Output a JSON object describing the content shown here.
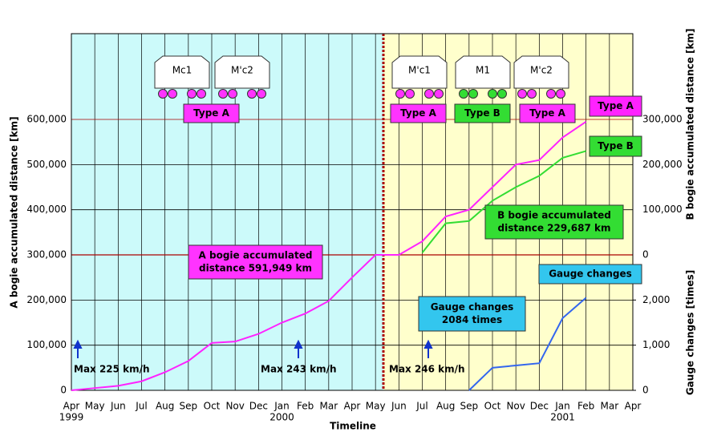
{
  "chart_data": {
    "type": "line",
    "title_x": "Timeline",
    "ylabel": "A bogie accumulated distance [km]",
    "y2label": "B bogie accumulated distance [km]",
    "y3label": "Gauge changes [times]",
    "categories": [
      "Apr",
      "May",
      "Jun",
      "Jul",
      "Aug",
      "Sep",
      "Oct",
      "Nov",
      "Dec",
      "Jan",
      "Feb",
      "Mar",
      "Apr",
      "May",
      "Jun",
      "Jul",
      "Aug",
      "Sep",
      "Oct",
      "Nov",
      "Dec",
      "Jan",
      "Feb",
      "Mar",
      "Apr"
    ],
    "year_labels": [
      {
        "category": 0,
        "label": "1999"
      },
      {
        "category": 9,
        "label": "2000"
      },
      {
        "category": 21,
        "label": "2001"
      }
    ],
    "ylim": [
      0,
      790000
    ],
    "yticks": [
      0,
      {
        "value": 100000,
        "label": "100,000"
      },
      {
        "value": 200000,
        "label": "200,000"
      },
      {
        "value": 300000,
        "label": "300,000"
      },
      {
        "value": 400000,
        "label": "400,000"
      },
      {
        "value": 500000,
        "label": "500,000"
      },
      {
        "value": 600000,
        "label": "600,000"
      }
    ],
    "y2lim": [
      -300000,
      490000
    ],
    "y2ticks": [
      0,
      {
        "value": 100000,
        "label": "100,000"
      },
      {
        "value": 200000,
        "label": "200,000"
      },
      {
        "value": 300000,
        "label": "300,000"
      }
    ],
    "y3lim": [
      0,
      7900
    ],
    "y3ticks": [
      0,
      {
        "value": 1000,
        "label": "1,000"
      },
      {
        "value": 2000,
        "label": "2,000"
      }
    ],
    "series": [
      {
        "name": "Type A",
        "color": "#ff22ff",
        "values": [
          0,
          5000,
          10000,
          20000,
          40000,
          65000,
          105000,
          108000,
          125000,
          150000,
          170000,
          198000,
          250000,
          300000,
          300000,
          330000,
          385000,
          400000,
          450000,
          500000,
          510000,
          560000,
          595000,
          null,
          null
        ]
      },
      {
        "name": "Type B",
        "color": "#33dd33",
        "axis": "y2",
        "values": [
          null,
          null,
          null,
          null,
          null,
          null,
          null,
          null,
          null,
          null,
          null,
          null,
          null,
          null,
          null,
          5000,
          70000,
          75000,
          120000,
          150000,
          175000,
          215000,
          230000,
          null,
          null
        ]
      },
      {
        "name": "Gauge changes",
        "color": "#3366ee",
        "axis": "y3",
        "values": [
          null,
          null,
          null,
          null,
          null,
          null,
          null,
          null,
          null,
          null,
          null,
          null,
          null,
          null,
          null,
          null,
          null,
          0,
          500,
          550,
          600,
          1600,
          2050,
          null,
          null
        ]
      }
    ],
    "annotations": [
      [
        "A bogie accumulated",
        "distance 591,949 km"
      ],
      [
        "B bogie accumulated",
        "distance 229,687 km"
      ],
      [
        "Gauge changes",
        "2084 times"
      ]
    ],
    "car_labels": [
      "Mc1",
      "M'c2",
      "M'c1",
      "M1",
      "M'c2"
    ],
    "type_labels": [
      "Type A",
      "Type A",
      "Type B",
      "Type A"
    ],
    "speed_notes": [
      "Max 225 km/h",
      "Max 243 km/h",
      "Max 246 km/h"
    ]
  }
}
